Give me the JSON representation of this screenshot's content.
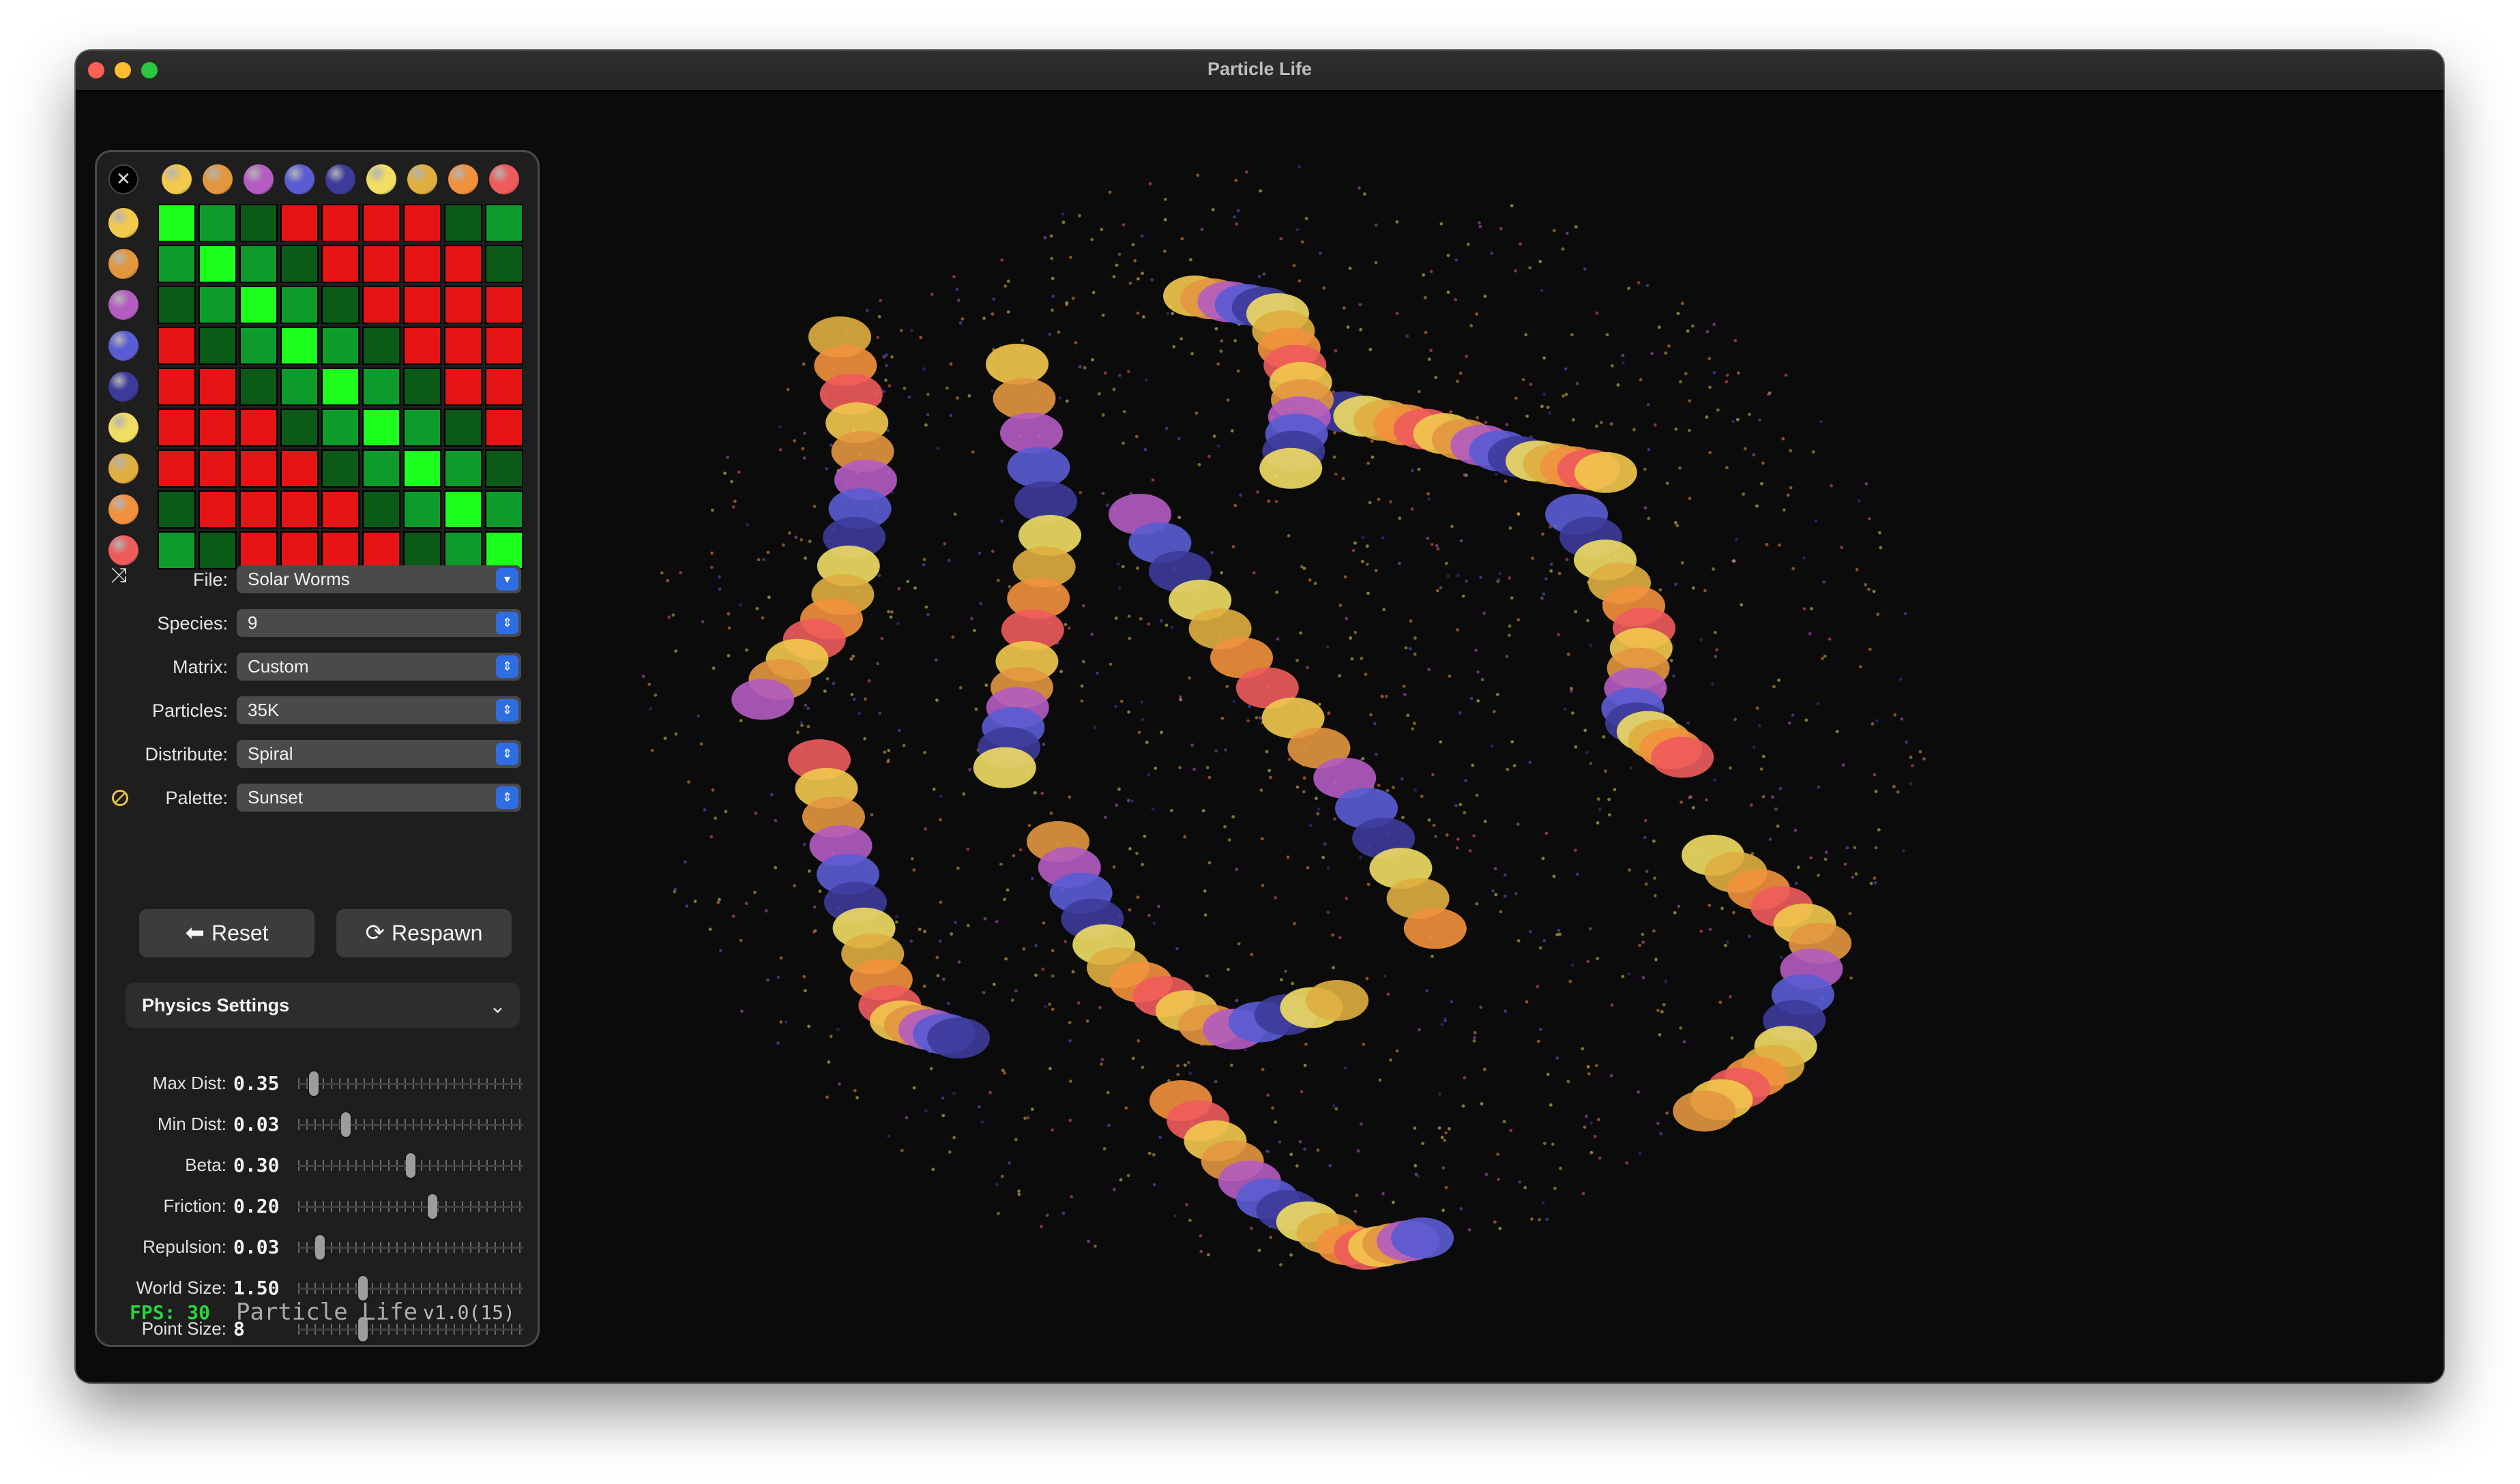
{
  "window": {
    "title": "Particle Life"
  },
  "matrix": {
    "species_colors": [
      "#f2c94c",
      "#e2963f",
      "#b45cc2",
      "#5a5cd4",
      "#3d3b9a",
      "#f0dd63",
      "#dfae3f",
      "#f2913d",
      "#ee5b5b"
    ],
    "cell_colors": {
      "G": "#1dff1d",
      "g": "#0d9c2c",
      "d": "#0b5a18",
      "R": "#e61414"
    },
    "rows": [
      "GgdRRRRdg",
      "gGgdRRRRd",
      "dgGgdRRRR",
      "RdgGgdRRR",
      "RRdgGgdRR",
      "RRRdgGgdR",
      "RRRRdgGgd",
      "dRRRRdgGg",
      "gdRRRRdgG"
    ]
  },
  "settings": {
    "file": {
      "label": "File:",
      "value": "Solar Worms"
    },
    "species": {
      "label": "Species:",
      "value": "9"
    },
    "matrix": {
      "label": "Matrix:",
      "value": "Custom"
    },
    "particles": {
      "label": "Particles:",
      "value": "35K"
    },
    "distribute": {
      "label": "Distribute:",
      "value": "Spiral"
    },
    "palette": {
      "label": "Palette:",
      "value": "Sunset"
    }
  },
  "buttons": {
    "reset": "Reset",
    "respawn": "Respawn"
  },
  "physics": {
    "title": "Physics Settings",
    "sliders": [
      {
        "label": "Max Dist:",
        "value": "0.35",
        "level": 0.05
      },
      {
        "label": "Min Dist:",
        "value": "0.03",
        "level": 0.2
      },
      {
        "label": "Beta:",
        "value": "0.30",
        "level": 0.5
      },
      {
        "label": "Friction:",
        "value": "0.20",
        "level": 0.6
      },
      {
        "label": "Repulsion:",
        "value": "0.03",
        "level": 0.08
      },
      {
        "label": "World Size:",
        "value": "1.50",
        "level": 0.28
      },
      {
        "label": "Point Size:",
        "value": "8",
        "level": 0.28
      }
    ]
  },
  "footer": {
    "fps": "FPS: 30",
    "app_name": "Particle Life",
    "version": "v1.0(15)"
  }
}
